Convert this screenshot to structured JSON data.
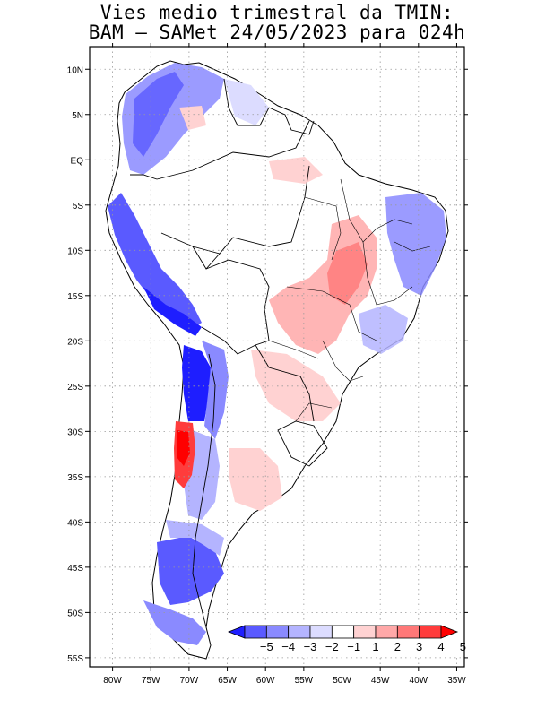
{
  "title": {
    "line1": "Vies medio trimestral da TMIN:",
    "line2": "BAM – SAMet 24/05/2023  para 024h"
  },
  "axes": {
    "x_ticks": [
      {
        "label": "80W",
        "value": -80
      },
      {
        "label": "75W",
        "value": -75
      },
      {
        "label": "70W",
        "value": -70
      },
      {
        "label": "65W",
        "value": -65
      },
      {
        "label": "60W",
        "value": -60
      },
      {
        "label": "55W",
        "value": -55
      },
      {
        "label": "50W",
        "value": -50
      },
      {
        "label": "45W",
        "value": -45
      },
      {
        "label": "40W",
        "value": -40
      },
      {
        "label": "35W",
        "value": -35
      }
    ],
    "y_ticks": [
      {
        "label": "10N",
        "value": 10
      },
      {
        "label": "5N",
        "value": 5
      },
      {
        "label": "EQ",
        "value": 0
      },
      {
        "label": "5S",
        "value": -5
      },
      {
        "label": "10S",
        "value": -10
      },
      {
        "label": "15S",
        "value": -15
      },
      {
        "label": "20S",
        "value": -20
      },
      {
        "label": "25S",
        "value": -25
      },
      {
        "label": "30S",
        "value": -30
      },
      {
        "label": "35S",
        "value": -35
      },
      {
        "label": "40S",
        "value": -40
      },
      {
        "label": "45S",
        "value": -45
      },
      {
        "label": "50S",
        "value": -50
      },
      {
        "label": "55S",
        "value": -55
      }
    ],
    "lon_range": [
      -83,
      -34
    ],
    "lat_range": [
      12.5,
      -56
    ]
  },
  "colorbar": {
    "labels": [
      {
        "text": "−5",
        "value": -5
      },
      {
        "text": "−4",
        "value": -4
      },
      {
        "text": "−3",
        "value": -3
      },
      {
        "text": "−2",
        "value": -2
      },
      {
        "text": "−1",
        "value": -1
      },
      {
        "text": "1",
        "value": 1
      },
      {
        "text": "2",
        "value": 2
      },
      {
        "text": "3",
        "value": 3
      },
      {
        "text": "4",
        "value": 4
      },
      {
        "text": "5",
        "value": 5
      }
    ],
    "colors": [
      "#1e1eff",
      "#5a5aff",
      "#8a8aff",
      "#b4b4ff",
      "#dcdcff",
      "#ffffff",
      "#ffd2d2",
      "#ffa8a8",
      "#ff7878",
      "#ff3c3c",
      "#ff0000"
    ]
  }
}
